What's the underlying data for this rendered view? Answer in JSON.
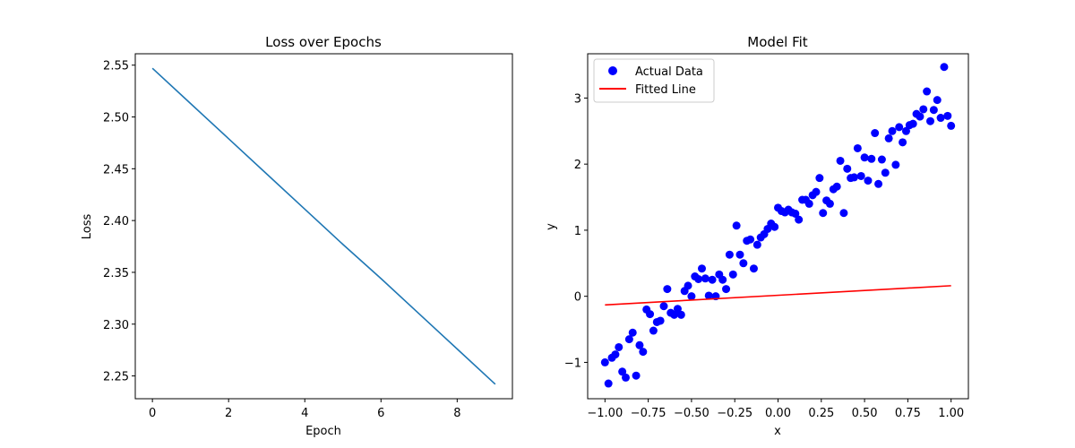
{
  "chart_data": [
    {
      "type": "line",
      "title": "Loss over Epochs",
      "xlabel": "Epoch",
      "ylabel": "Loss",
      "xlim": [
        -0.45,
        9.45
      ],
      "ylim": [
        2.228,
        2.561
      ],
      "x_ticks": [
        0,
        2,
        4,
        6,
        8
      ],
      "x_tick_labels": [
        "0",
        "2",
        "4",
        "6",
        "8"
      ],
      "y_ticks": [
        2.25,
        2.3,
        2.35,
        2.4,
        2.45,
        2.5,
        2.55
      ],
      "y_tick_labels": [
        "2.25",
        "2.30",
        "2.35",
        "2.40",
        "2.45",
        "2.50",
        "2.55"
      ],
      "grid": false,
      "series": [
        {
          "color": "#1f77b4",
          "x": [
            0,
            1,
            2,
            3,
            4,
            5,
            6,
            7,
            8,
            9
          ],
          "y": [
            2.547,
            2.513,
            2.479,
            2.445,
            2.411,
            2.377,
            2.344,
            2.31,
            2.276,
            2.242
          ]
        }
      ]
    },
    {
      "type": "scatter",
      "title": "Model Fit",
      "xlabel": "x",
      "ylabel": "y",
      "xlim": [
        -1.1,
        1.1
      ],
      "ylim": [
        -1.55,
        3.67
      ],
      "x_ticks": [
        -1.0,
        -0.75,
        -0.5,
        -0.25,
        0.0,
        0.25,
        0.5,
        0.75,
        1.0
      ],
      "x_tick_labels": [
        "−1.00",
        "−0.75",
        "−0.50",
        "−0.25",
        "0.00",
        "0.25",
        "0.50",
        "0.75",
        "1.00"
      ],
      "y_ticks": [
        -1,
        0,
        1,
        2,
        3
      ],
      "y_tick_labels": [
        "−1",
        "0",
        "1",
        "2",
        "3"
      ],
      "grid": false,
      "legend_position": "top-left",
      "series": [
        {
          "name": "Actual Data",
          "type": "scatter",
          "color": "#0000ff",
          "x": [
            -1.0,
            -0.98,
            -0.96,
            -0.94,
            -0.92,
            -0.9,
            -0.88,
            -0.86,
            -0.84,
            -0.82,
            -0.8,
            -0.78,
            -0.76,
            -0.74,
            -0.72,
            -0.7,
            -0.68,
            -0.66,
            -0.64,
            -0.62,
            -0.6,
            -0.58,
            -0.56,
            -0.54,
            -0.52,
            -0.5,
            -0.48,
            -0.46,
            -0.44,
            -0.42,
            -0.4,
            -0.38,
            -0.36,
            -0.34,
            -0.32,
            -0.3,
            -0.28,
            -0.26,
            -0.24,
            -0.22,
            -0.2,
            -0.18,
            -0.16,
            -0.14,
            -0.12,
            -0.1,
            -0.08,
            -0.06,
            -0.04,
            -0.02,
            0.0,
            0.02,
            0.04,
            0.06,
            0.08,
            0.1,
            0.12,
            0.14,
            0.16,
            0.18,
            0.2,
            0.22,
            0.24,
            0.26,
            0.28,
            0.3,
            0.32,
            0.34,
            0.36,
            0.38,
            0.4,
            0.42,
            0.44,
            0.46,
            0.48,
            0.5,
            0.52,
            0.54,
            0.56,
            0.58,
            0.6,
            0.62,
            0.64,
            0.66,
            0.68,
            0.7,
            0.72,
            0.74,
            0.76,
            0.78,
            0.8,
            0.82,
            0.84,
            0.86,
            0.88,
            0.9,
            0.92,
            0.94,
            0.96,
            0.98,
            1.0
          ],
          "y": [
            -1.0,
            -1.32,
            -0.93,
            -0.88,
            -0.77,
            -1.14,
            -1.23,
            -0.65,
            -0.55,
            -1.2,
            -0.74,
            -0.84,
            -0.2,
            -0.27,
            -0.52,
            -0.39,
            -0.37,
            -0.15,
            0.11,
            -0.25,
            -0.28,
            -0.19,
            -0.28,
            0.08,
            0.16,
            0.0,
            0.3,
            0.26,
            0.42,
            0.27,
            0.01,
            0.25,
            0.0,
            0.33,
            0.25,
            0.11,
            0.63,
            0.33,
            1.07,
            0.63,
            0.5,
            0.84,
            0.86,
            0.42,
            0.78,
            0.89,
            0.94,
            1.02,
            1.1,
            1.05,
            1.34,
            1.29,
            1.27,
            1.31,
            1.27,
            1.25,
            1.16,
            1.46,
            1.46,
            1.4,
            1.53,
            1.58,
            1.79,
            1.26,
            1.45,
            1.4,
            1.62,
            1.66,
            2.05,
            1.26,
            1.93,
            1.79,
            1.8,
            2.24,
            1.82,
            2.1,
            1.75,
            2.08,
            2.47,
            1.7,
            2.07,
            1.87,
            2.39,
            2.5,
            1.99,
            2.56,
            2.33,
            2.5,
            2.59,
            2.61,
            2.76,
            2.72,
            2.83,
            3.1,
            2.65,
            2.82,
            2.97,
            2.7,
            3.47,
            2.73,
            2.58
          ]
        },
        {
          "name": "Fitted Line",
          "type": "line",
          "color": "#ff0000",
          "x": [
            -1.0,
            1.0
          ],
          "y": [
            -0.13,
            0.16
          ]
        }
      ]
    }
  ]
}
